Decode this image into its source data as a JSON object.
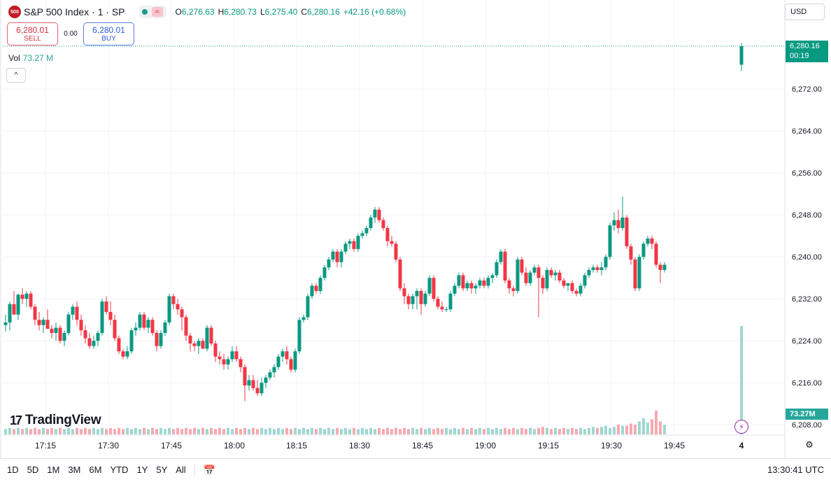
{
  "header": {
    "logo_text": "500",
    "symbol_title": "S&P 500 Index · 1 · SP",
    "wave_icon": "≈",
    "ohlc": {
      "o_label": "O",
      "o_value": "6,276.63",
      "h_label": "H",
      "h_value": "6,280.73",
      "l_label": "L",
      "l_value": "6,275.40",
      "c_label": "C",
      "c_value": "6,280.16",
      "change": "+42.16 (+0.68%)"
    }
  },
  "trade": {
    "sell_price": "6,280.01",
    "sell_label": "SELL",
    "spread": "0.00",
    "buy_price": "6,280.01",
    "buy_label": "BUY"
  },
  "volume_label": {
    "label": "Vol",
    "value": "73.27 M"
  },
  "collapse_icon": "^",
  "currency": "USD",
  "price_tag": {
    "price": "6,280.16",
    "countdown": "00:19"
  },
  "vol_tag": "73.27M",
  "brand": {
    "mark": "17",
    "name": "TradingView"
  },
  "periods": [
    "1D",
    "5D",
    "1M",
    "3M",
    "6M",
    "YTD",
    "1Y",
    "5Y",
    "All"
  ],
  "clock": "13:30:41 UTC",
  "colors": {
    "up": "#089981",
    "down": "#f23645",
    "vol_up": "#9fd8d1",
    "vol_down": "#f7a9b0",
    "grid": "#f0f3fa"
  },
  "chart_data": {
    "type": "candlestick",
    "interval_minutes": 1,
    "ylim": [
      6205,
      6286
    ],
    "y_ticks": [
      6272,
      6264,
      6256,
      6248,
      6240,
      6232,
      6224,
      6216,
      6208
    ],
    "y_tick_labels": [
      "6,272.00",
      "6,264.00",
      "6,256.00",
      "6,248.00",
      "6,240.00",
      "6,232.00",
      "6,224.00",
      "6,216.00",
      "6,208.00"
    ],
    "x_tick_labels": [
      "17:15",
      "17:30",
      "17:45",
      "18:00",
      "18:15",
      "18:30",
      "18:45",
      "19:00",
      "19:15",
      "19:30",
      "19:45",
      "4"
    ],
    "x_start_time": "17:07",
    "last_price": 6280.16,
    "ohlc": [
      [
        6227.0,
        6229.0,
        6225.8,
        6227.5
      ],
      [
        6227.5,
        6231.5,
        6226.0,
        6231.0
      ],
      [
        6231.0,
        6233.5,
        6229.5,
        6229.0
      ],
      [
        6229.0,
        6233.0,
        6228.0,
        6232.8
      ],
      [
        6232.8,
        6234.0,
        6231.0,
        6232.0
      ],
      [
        6232.0,
        6233.5,
        6230.5,
        6233.0
      ],
      [
        6233.0,
        6233.5,
        6230.0,
        6230.5
      ],
      [
        6230.5,
        6231.0,
        6227.0,
        6228.0
      ],
      [
        6228.0,
        6229.5,
        6226.0,
        6227.0
      ],
      [
        6227.0,
        6228.5,
        6225.5,
        6228.0
      ],
      [
        6228.0,
        6230.0,
        6226.5,
        6226.3
      ],
      [
        6226.3,
        6227.0,
        6224.5,
        6225.5
      ],
      [
        6225.5,
        6227.5,
        6224.0,
        6226.5
      ],
      [
        6226.5,
        6227.0,
        6223.5,
        6224.0
      ],
      [
        6224.0,
        6226.0,
        6223.0,
        6225.5
      ],
      [
        6225.5,
        6229.5,
        6225.0,
        6229.0
      ],
      [
        6229.0,
        6231.0,
        6228.0,
        6230.5
      ],
      [
        6230.5,
        6231.5,
        6227.0,
        6228.0
      ],
      [
        6228.0,
        6229.0,
        6225.0,
        6226.0
      ],
      [
        6226.0,
        6227.0,
        6223.5,
        6224.5
      ],
      [
        6224.5,
        6225.5,
        6222.5,
        6223.0
      ],
      [
        6223.0,
        6225.0,
        6222.5,
        6224.0
      ],
      [
        6224.0,
        6226.0,
        6223.0,
        6225.5
      ],
      [
        6225.5,
        6232.0,
        6225.0,
        6231.5
      ],
      [
        6231.5,
        6232.5,
        6229.0,
        6229.5
      ],
      [
        6229.5,
        6231.5,
        6227.0,
        6228.0
      ],
      [
        6228.0,
        6229.0,
        6224.0,
        6224.5
      ],
      [
        6224.5,
        6225.0,
        6221.5,
        6222.0
      ],
      [
        6222.0,
        6222.5,
        6220.5,
        6221.0
      ],
      [
        6221.0,
        6223.0,
        6220.5,
        6222.0
      ],
      [
        6222.0,
        6226.5,
        6221.5,
        6226.0
      ],
      [
        6226.0,
        6227.5,
        6225.0,
        6226.5
      ],
      [
        6226.5,
        6229.5,
        6226.0,
        6229.0
      ],
      [
        6229.0,
        6229.5,
        6226.0,
        6226.5
      ],
      [
        6226.5,
        6228.5,
        6225.5,
        6228.0
      ],
      [
        6228.0,
        6228.5,
        6225.0,
        6225.5
      ],
      [
        6225.5,
        6226.0,
        6222.0,
        6223.0
      ],
      [
        6223.0,
        6226.0,
        6222.5,
        6225.5
      ],
      [
        6225.5,
        6228.0,
        6225.0,
        6227.5
      ],
      [
        6227.5,
        6233.0,
        6227.0,
        6232.5
      ],
      [
        6232.5,
        6233.0,
        6230.0,
        6231.0
      ],
      [
        6231.0,
        6232.0,
        6229.0,
        6230.0
      ],
      [
        6230.0,
        6230.5,
        6226.0,
        6228.5
      ],
      [
        6228.5,
        6229.0,
        6224.0,
        6225.0
      ],
      [
        6225.0,
        6225.5,
        6222.0,
        6223.5
      ],
      [
        6223.5,
        6224.0,
        6222.0,
        6223.0
      ],
      [
        6223.0,
        6224.5,
        6221.5,
        6224.0
      ],
      [
        6224.0,
        6224.5,
        6222.5,
        6222.5
      ],
      [
        6222.5,
        6227.0,
        6222.0,
        6226.5
      ],
      [
        6226.5,
        6227.0,
        6223.0,
        6223.5
      ],
      [
        6223.5,
        6224.0,
        6220.0,
        6221.0
      ],
      [
        6221.0,
        6222.0,
        6219.5,
        6220.5
      ],
      [
        6220.5,
        6221.5,
        6218.5,
        6219.5
      ],
      [
        6219.5,
        6221.0,
        6218.5,
        6220.5
      ],
      [
        6220.5,
        6223.0,
        6220.0,
        6222.0
      ],
      [
        6222.0,
        6223.0,
        6220.0,
        6220.5
      ],
      [
        6220.5,
        6221.0,
        6218.0,
        6219.0
      ],
      [
        6219.0,
        6219.5,
        6212.5,
        6215.5
      ],
      [
        6215.5,
        6217.5,
        6214.5,
        6216.5
      ],
      [
        6216.5,
        6217.5,
        6214.5,
        6215.0
      ],
      [
        6215.0,
        6216.5,
        6213.5,
        6214.0
      ],
      [
        6214.0,
        6217.0,
        6213.5,
        6216.0
      ],
      [
        6216.0,
        6217.5,
        6215.0,
        6217.0
      ],
      [
        6217.0,
        6218.5,
        6216.5,
        6218.0
      ],
      [
        6218.0,
        6219.5,
        6217.0,
        6219.0
      ],
      [
        6219.0,
        6221.5,
        6218.5,
        6221.0
      ],
      [
        6221.0,
        6222.5,
        6220.0,
        6222.0
      ],
      [
        6222.0,
        6223.0,
        6219.5,
        6220.5
      ],
      [
        6220.5,
        6221.0,
        6218.0,
        6218.5
      ],
      [
        6218.5,
        6222.5,
        6218.0,
        6222.0
      ],
      [
        6222.0,
        6228.5,
        6221.5,
        6228.0
      ],
      [
        6228.0,
        6229.0,
        6227.5,
        6228.5
      ],
      [
        6228.5,
        6233.0,
        6228.0,
        6232.5
      ],
      [
        6232.5,
        6235.0,
        6232.0,
        6234.5
      ],
      [
        6234.5,
        6235.0,
        6233.0,
        6233.5
      ],
      [
        6233.5,
        6236.5,
        6233.0,
        6236.0
      ],
      [
        6236.0,
        6238.5,
        6235.5,
        6238.0
      ],
      [
        6238.0,
        6240.0,
        6237.5,
        6239.5
      ],
      [
        6239.5,
        6241.5,
        6239.0,
        6241.0
      ],
      [
        6241.0,
        6241.5,
        6238.0,
        6239.0
      ],
      [
        6239.0,
        6241.5,
        6238.0,
        6241.0
      ],
      [
        6241.0,
        6243.0,
        6240.5,
        6242.5
      ],
      [
        6242.5,
        6243.5,
        6241.5,
        6243.0
      ],
      [
        6243.0,
        6243.5,
        6241.0,
        6241.5
      ],
      [
        6241.5,
        6244.5,
        6241.0,
        6244.0
      ],
      [
        6244.0,
        6245.0,
        6243.5,
        6244.5
      ],
      [
        6244.5,
        6246.0,
        6244.0,
        6245.5
      ],
      [
        6245.5,
        6248.0,
        6245.0,
        6247.5
      ],
      [
        6247.5,
        6249.5,
        6246.5,
        6249.0
      ],
      [
        6249.0,
        6249.5,
        6246.5,
        6247.0
      ],
      [
        6247.0,
        6247.5,
        6245.0,
        6245.5
      ],
      [
        6245.5,
        6246.0,
        6242.0,
        6243.0
      ],
      [
        6243.0,
        6244.0,
        6242.0,
        6242.5
      ],
      [
        6242.5,
        6243.0,
        6239.0,
        6239.5
      ],
      [
        6239.5,
        6240.0,
        6233.5,
        6234.0
      ],
      [
        6234.0,
        6235.0,
        6231.0,
        6232.5
      ],
      [
        6232.5,
        6233.0,
        6230.0,
        6231.0
      ],
      [
        6231.0,
        6233.0,
        6230.0,
        6232.5
      ],
      [
        6232.5,
        6234.0,
        6230.0,
        6233.5
      ],
      [
        6233.5,
        6234.0,
        6229.0,
        6231.0
      ],
      [
        6231.0,
        6233.5,
        6230.5,
        6233.0
      ],
      [
        6233.0,
        6236.5,
        6232.5,
        6236.0
      ],
      [
        6236.0,
        6236.5,
        6231.5,
        6232.0
      ],
      [
        6232.0,
        6232.5,
        6230.0,
        6230.5
      ],
      [
        6230.5,
        6231.5,
        6229.5,
        6230.0
      ],
      [
        6230.0,
        6230.5,
        6229.5,
        6230.0
      ],
      [
        6230.0,
        6233.5,
        6229.5,
        6233.0
      ],
      [
        6233.0,
        6235.0,
        6232.5,
        6234.5
      ],
      [
        6234.5,
        6237.0,
        6234.0,
        6236.5
      ],
      [
        6236.5,
        6237.0,
        6233.5,
        6234.0
      ],
      [
        6234.0,
        6235.5,
        6233.5,
        6235.0
      ],
      [
        6235.0,
        6235.5,
        6233.0,
        6234.0
      ],
      [
        6234.0,
        6235.0,
        6233.0,
        6234.5
      ],
      [
        6234.5,
        6236.0,
        6234.0,
        6235.5
      ],
      [
        6235.5,
        6236.0,
        6234.0,
        6234.5
      ],
      [
        6234.5,
        6236.5,
        6234.0,
        6236.0
      ],
      [
        6236.0,
        6237.0,
        6235.0,
        6236.5
      ],
      [
        6236.5,
        6239.5,
        6236.0,
        6239.0
      ],
      [
        6239.0,
        6241.5,
        6238.5,
        6241.0
      ],
      [
        6241.0,
        6241.5,
        6235.0,
        6235.5
      ],
      [
        6235.5,
        6236.0,
        6233.0,
        6234.0
      ],
      [
        6234.0,
        6234.5,
        6232.5,
        6233.5
      ],
      [
        6233.5,
        6240.0,
        6233.0,
        6239.5
      ],
      [
        6239.5,
        6240.0,
        6236.5,
        6237.0
      ],
      [
        6237.0,
        6238.0,
        6234.5,
        6235.0
      ],
      [
        6235.0,
        6237.5,
        6234.5,
        6237.0
      ],
      [
        6237.0,
        6238.5,
        6236.5,
        6238.0
      ],
      [
        6238.0,
        6238.5,
        6228.5,
        6236.0
      ],
      [
        6236.0,
        6236.5,
        6233.0,
        6234.0
      ],
      [
        6234.0,
        6238.0,
        6233.5,
        6237.5
      ],
      [
        6237.5,
        6238.0,
        6236.0,
        6236.5
      ],
      [
        6236.5,
        6237.5,
        6235.5,
        6237.0
      ],
      [
        6237.0,
        6237.5,
        6235.0,
        6235.5
      ],
      [
        6235.5,
        6236.0,
        6234.0,
        6234.5
      ],
      [
        6234.5,
        6235.0,
        6233.5,
        6235.0
      ],
      [
        6235.0,
        6235.5,
        6233.0,
        6233.5
      ],
      [
        6233.5,
        6234.0,
        6232.5,
        6233.0
      ],
      [
        6233.0,
        6235.0,
        6232.5,
        6234.5
      ],
      [
        6234.5,
        6237.0,
        6234.0,
        6236.5
      ],
      [
        6236.5,
        6238.0,
        6236.0,
        6237.5
      ],
      [
        6237.5,
        6238.5,
        6237.0,
        6238.0
      ],
      [
        6238.0,
        6238.5,
        6237.0,
        6237.5
      ],
      [
        6237.5,
        6239.0,
        6236.5,
        6238.0
      ],
      [
        6238.0,
        6240.5,
        6237.5,
        6240.0
      ],
      [
        6240.0,
        6246.5,
        6239.5,
        6246.0
      ],
      [
        6246.0,
        6248.5,
        6245.0,
        6247.0
      ],
      [
        6247.0,
        6249.0,
        6244.5,
        6245.5
      ],
      [
        6245.5,
        6251.5,
        6245.0,
        6247.5
      ],
      [
        6247.5,
        6248.0,
        6241.5,
        6242.0
      ],
      [
        6242.0,
        6242.5,
        6238.5,
        6239.5
      ],
      [
        6239.5,
        6240.0,
        6233.5,
        6234.0
      ],
      [
        6234.0,
        6240.5,
        6233.5,
        6240.0
      ],
      [
        6240.0,
        6243.0,
        6239.5,
        6242.5
      ],
      [
        6242.5,
        6244.0,
        6242.0,
        6243.5
      ],
      [
        6243.5,
        6244.0,
        6241.5,
        6242.5
      ],
      [
        6242.5,
        6243.0,
        6238.0,
        6238.5
      ],
      [
        6238.5,
        6239.0,
        6235.0,
        6237.5
      ],
      [
        6237.5,
        6239.0,
        6237.0,
        6238.5
      ],
      [
        6276.63,
        6280.73,
        6275.4,
        6280.16
      ]
    ],
    "volume_rel": [
      0.05,
      0.06,
      0.05,
      0.06,
      0.05,
      0.06,
      0.05,
      0.06,
      0.05,
      0.06,
      0.05,
      0.06,
      0.05,
      0.06,
      0.05,
      0.06,
      0.05,
      0.06,
      0.05,
      0.06,
      0.05,
      0.06,
      0.05,
      0.06,
      0.05,
      0.06,
      0.05,
      0.06,
      0.05,
      0.06,
      0.05,
      0.06,
      0.05,
      0.06,
      0.05,
      0.06,
      0.05,
      0.06,
      0.05,
      0.06,
      0.05,
      0.06,
      0.05,
      0.06,
      0.05,
      0.06,
      0.05,
      0.06,
      0.05,
      0.06,
      0.05,
      0.06,
      0.05,
      0.06,
      0.05,
      0.06,
      0.05,
      0.06,
      0.05,
      0.06,
      0.05,
      0.06,
      0.05,
      0.06,
      0.05,
      0.06,
      0.05,
      0.06,
      0.05,
      0.06,
      0.05,
      0.06,
      0.05,
      0.06,
      0.05,
      0.06,
      0.05,
      0.06,
      0.05,
      0.06,
      0.05,
      0.06,
      0.05,
      0.06,
      0.05,
      0.06,
      0.05,
      0.06,
      0.05,
      0.06,
      0.05,
      0.06,
      0.05,
      0.06,
      0.05,
      0.06,
      0.05,
      0.06,
      0.05,
      0.06,
      0.05,
      0.06,
      0.05,
      0.06,
      0.05,
      0.06,
      0.05,
      0.06,
      0.05,
      0.06,
      0.05,
      0.06,
      0.05,
      0.06,
      0.05,
      0.06,
      0.05,
      0.06,
      0.05,
      0.06,
      0.05,
      0.06,
      0.05,
      0.06,
      0.05,
      0.06,
      0.05,
      0.06,
      0.07,
      0.06,
      0.05,
      0.06,
      0.05,
      0.06,
      0.05,
      0.06,
      0.05,
      0.06,
      0.05,
      0.06,
      0.07,
      0.06,
      0.07,
      0.08,
      0.06,
      0.07,
      0.09,
      0.08,
      0.08,
      0.1,
      0.09,
      0.12,
      0.15,
      0.11,
      0.14,
      0.22,
      0.12,
      0.09,
      1.0
    ]
  }
}
